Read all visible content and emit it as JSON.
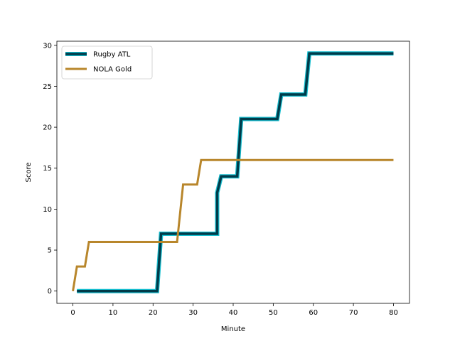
{
  "chart_data": {
    "type": "line",
    "title": "",
    "xlabel": "Minute",
    "ylabel": "Score",
    "xlim": [
      -4,
      84
    ],
    "ylim": [
      -1.5,
      30.5
    ],
    "xticks": [
      0,
      10,
      20,
      30,
      40,
      50,
      60,
      70,
      80
    ],
    "yticks": [
      0,
      5,
      10,
      15,
      20,
      25,
      30
    ],
    "grid": false,
    "legend_position": "top-left",
    "series": [
      {
        "name": "Rugby ATL",
        "color": "#003b4a",
        "outline_color": "#17becf",
        "x": [
          1,
          21,
          22,
          36,
          36,
          37,
          41,
          42,
          51,
          52,
          58,
          59,
          80
        ],
        "y": [
          0,
          0,
          7,
          7,
          12,
          14,
          14,
          21,
          21,
          24,
          24,
          29,
          29
        ]
      },
      {
        "name": "NOLA Gold",
        "color": "#b8862b",
        "x": [
          0,
          1,
          3,
          4,
          26,
          27.5,
          31,
          32,
          80
        ],
        "y": [
          0,
          3,
          3,
          6,
          6,
          13,
          13,
          16,
          16
        ]
      }
    ]
  }
}
